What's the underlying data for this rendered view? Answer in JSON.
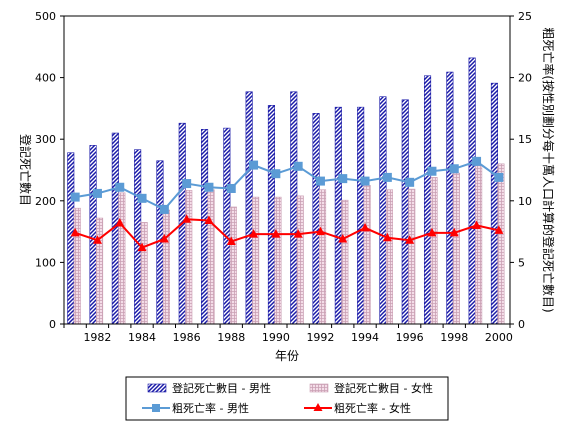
{
  "chart_data": {
    "type": "bar",
    "x": [
      1981,
      1982,
      1983,
      1984,
      1985,
      1986,
      1987,
      1988,
      1989,
      1990,
      1991,
      1992,
      1993,
      1994,
      1995,
      1996,
      1997,
      1998,
      1999,
      2000
    ],
    "x_tick_labels": [
      "1982",
      "1984",
      "1986",
      "1988",
      "1990",
      "1992",
      "1994",
      "1996",
      "1998",
      "2000"
    ],
    "xlabel": "年份",
    "ylabel_left": "登記死亡數目",
    "ylabel_right": "粗死亡率(按性別劃分每十萬人口計算的登記死亡數目)",
    "ylim_left": [
      0,
      500
    ],
    "ylim_right": [
      0,
      25
    ],
    "yticks_left": [
      "0",
      "100",
      "200",
      "300",
      "400",
      "500"
    ],
    "yticks_right": [
      "0",
      "5",
      "10",
      "15",
      "20",
      "25"
    ],
    "grid": false,
    "legend_position": "bottom",
    "series": [
      {
        "name": "登記死亡數目 - 男性",
        "kind": "bar",
        "axis": "left",
        "values": [
          278,
          290,
          310,
          283,
          265,
          326,
          316,
          318,
          377,
          355,
          377,
          342,
          352,
          352,
          369,
          364,
          403,
          409,
          432,
          391
        ]
      },
      {
        "name": "登記死亡數目 - 女性",
        "kind": "bar",
        "axis": "left",
        "values": [
          188,
          172,
          213,
          165,
          185,
          217,
          218,
          190,
          206,
          206,
          208,
          218,
          201,
          225,
          218,
          219,
          238,
          245,
          257,
          260
        ]
      },
      {
        "name": "粗死亡率 - 男性",
        "kind": "line",
        "axis": "right",
        "color": "#5b9bd5",
        "values": [
          10.3,
          10.6,
          11.1,
          10.2,
          9.3,
          11.4,
          11.1,
          11.0,
          12.9,
          12.2,
          12.8,
          11.6,
          11.8,
          11.6,
          11.9,
          11.5,
          12.4,
          12.6,
          13.2,
          11.9
        ]
      },
      {
        "name": "粗死亡率 - 女性",
        "kind": "line",
        "axis": "right",
        "color": "#ff0000",
        "values": [
          7.4,
          6.8,
          8.2,
          6.2,
          6.9,
          8.5,
          8.4,
          6.7,
          7.3,
          7.3,
          7.3,
          7.5,
          6.9,
          7.8,
          7.0,
          6.8,
          7.4,
          7.4,
          8.0,
          7.6
        ]
      }
    ]
  }
}
